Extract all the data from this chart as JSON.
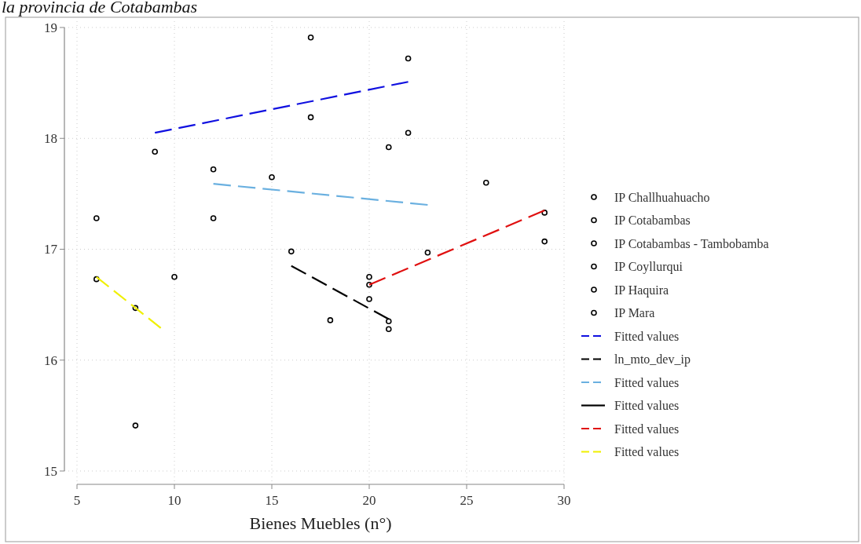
{
  "chart_data": {
    "type": "scatter",
    "title": "la provincia de Cotabambas",
    "xlabel": "Bienes Muebles (n°)",
    "xlim": [
      5,
      30
    ],
    "ylim": [
      15,
      19
    ],
    "xticks": [
      5,
      10,
      15,
      20,
      25,
      30
    ],
    "yticks": [
      15,
      16,
      17,
      18,
      19
    ],
    "grid": true,
    "legend": "right",
    "series": [
      {
        "name": "IP Challhuahuacho",
        "marker": "circle",
        "color": "#000000",
        "x": [
          9,
          17,
          17,
          22,
          22
        ],
        "values": [
          17.88,
          18.91,
          18.19,
          18.72,
          18.05
        ]
      },
      {
        "name": "IP Cotabambas",
        "marker": "circle",
        "color": "#000000",
        "x": [
          16,
          18,
          20,
          21,
          21
        ],
        "values": [
          16.98,
          16.36,
          16.55,
          16.35,
          16.28
        ]
      },
      {
        "name": "IP Cotabambas - Tambobamba",
        "marker": "circle",
        "color": "#000000",
        "x": [
          12,
          12,
          15,
          21,
          23
        ],
        "values": [
          17.72,
          17.28,
          17.65,
          17.92,
          16.97
        ]
      },
      {
        "name": "IP Coyllurqui",
        "marker": "circle",
        "color": "#000000",
        "x": [
          6,
          8,
          10
        ],
        "values": [
          17.28,
          15.41,
          16.75
        ]
      },
      {
        "name": "IP Haquira",
        "marker": "circle",
        "color": "#000000",
        "x": [
          20,
          20,
          26,
          29,
          29
        ],
        "values": [
          16.75,
          16.68,
          17.6,
          17.33,
          17.07
        ]
      },
      {
        "name": "IP Mara",
        "marker": "circle",
        "color": "#000000",
        "x": [
          6,
          8
        ],
        "values": [
          16.73,
          16.47
        ]
      },
      {
        "name": "Fitted values",
        "type": "line",
        "color": "#1010e0",
        "line_style": "dashed",
        "x": [
          9,
          22
        ],
        "values": [
          18.05,
          18.51
        ]
      },
      {
        "name": "ln_mto_dev_ip",
        "type": "line",
        "color": "#000000",
        "line_style": "dashed",
        "x": [
          16,
          21
        ],
        "values": [
          16.85,
          16.37
        ]
      },
      {
        "name": "Fitted values",
        "type": "line",
        "color": "#6ab0e0",
        "line_style": "dashed",
        "x": [
          12,
          23
        ],
        "values": [
          17.59,
          17.4
        ]
      },
      {
        "name": "Fitted values",
        "type": "line",
        "color": "#000000",
        "line_style": "solid"
      },
      {
        "name": "Fitted values",
        "type": "line",
        "color": "#e01010",
        "line_style": "dashed",
        "x": [
          20,
          29
        ],
        "values": [
          16.68,
          17.35
        ]
      },
      {
        "name": "Fitted values",
        "type": "line",
        "color": "#f0f000",
        "line_style": "dashed",
        "x": [
          6,
          9.3
        ],
        "values": [
          16.75,
          16.29
        ]
      }
    ]
  }
}
